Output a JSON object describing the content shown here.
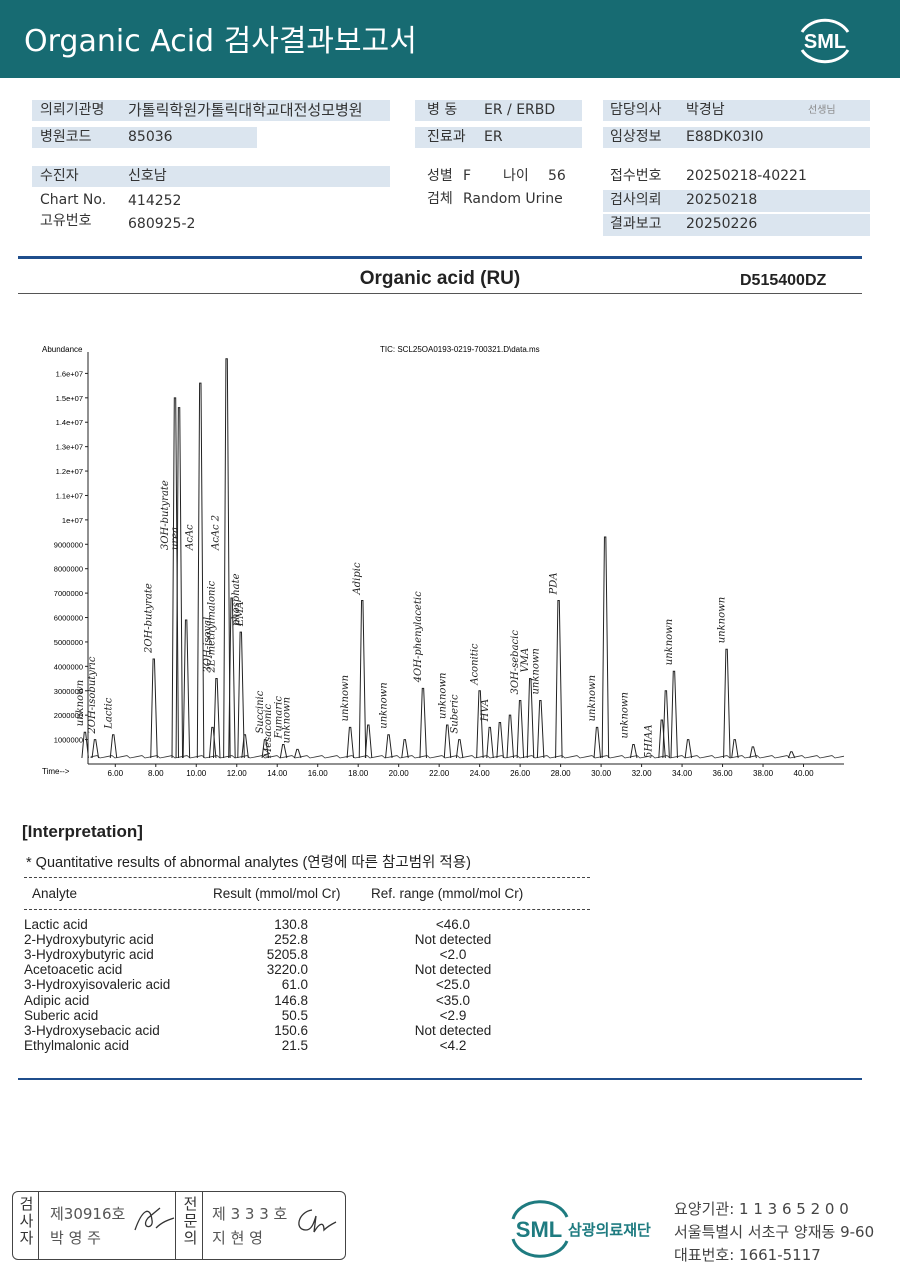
{
  "header": {
    "title": "Organic Acid 검사결과보고서",
    "logo": "SML"
  },
  "info": {
    "institution": {
      "label": "의뢰기관명",
      "value": "가톨릭학원가톨릭대학교대전성모병원"
    },
    "hospital_code": {
      "label": "병원코드",
      "value": "85036"
    },
    "ward": {
      "label": "병 동",
      "value": "ER / ERBD"
    },
    "department": {
      "label": "진료과",
      "value": "ER"
    },
    "doctor": {
      "label": "담당의사",
      "value": "박경남",
      "suffix": "선생님"
    },
    "clinical_info": {
      "label": "임상정보",
      "value": "E88DK03I0"
    },
    "patient": {
      "label": "수진자",
      "value": "신호남"
    },
    "chart_no": {
      "label": "Chart No.",
      "value": "414252"
    },
    "unique_no": {
      "label": "고유번호",
      "value": "680925-2"
    },
    "sex": {
      "label": "성별",
      "value": "F"
    },
    "age": {
      "label": "나이",
      "value": "56"
    },
    "specimen": {
      "label": "검체",
      "value": "Random Urine"
    },
    "receipt_no": {
      "label": "접수번호",
      "value": "20250218-40221"
    },
    "request_date": {
      "label": "검사의뢰",
      "value": "20250218"
    },
    "report_date": {
      "label": "결과보고",
      "value": "20250226"
    }
  },
  "test": {
    "title": "Organic acid (RU)",
    "code": "D515400DZ"
  },
  "chromatogram": {
    "type": "line",
    "title": "TIC: SCL25OA0193-0219-700321.D\\data.ms",
    "y_label": "Abundance",
    "x_label": "Time-->",
    "xlim": [
      4.8,
      42.0
    ],
    "ylim": [
      0,
      17000000
    ],
    "xticks": [
      {
        "value": 6,
        "label": "6.00"
      },
      {
        "value": 8,
        "label": "8.00"
      },
      {
        "value": 10,
        "label": "10.00"
      },
      {
        "value": 12,
        "label": "12.00"
      },
      {
        "value": 14,
        "label": "14.00"
      },
      {
        "value": 16,
        "label": "16.00"
      },
      {
        "value": 18,
        "label": "18.00"
      },
      {
        "value": 20,
        "label": "20.00"
      },
      {
        "value": 22,
        "label": "22.00"
      },
      {
        "value": 24,
        "label": "24.00"
      },
      {
        "value": 26,
        "label": "26.00"
      },
      {
        "value": 28,
        "label": "28.00"
      },
      {
        "value": 30,
        "label": "30.00"
      },
      {
        "value": 32,
        "label": "32.00"
      },
      {
        "value": 34,
        "label": "34.00"
      },
      {
        "value": 36,
        "label": "36.00"
      },
      {
        "value": 38,
        "label": "38.00"
      },
      {
        "value": 40,
        "label": "40.00"
      }
    ],
    "yticks": [
      1000000,
      2000000,
      3000000,
      4000000,
      5000000,
      6000000,
      7000000,
      8000000,
      9000000,
      {
        "value": 10000000,
        "label": "1e+07"
      },
      {
        "value": 11000000,
        "label": "1.1e+07"
      },
      {
        "value": 12000000,
        "label": "1.2e+07"
      },
      {
        "value": 13000000,
        "label": "1.3e+07"
      },
      {
        "value": 14000000,
        "label": "1.4e+07"
      },
      {
        "value": 15000000,
        "label": "1.5e+07"
      },
      {
        "value": 16000000,
        "label": "1.6e+07"
      }
    ],
    "x": [
      4.5,
      5.0,
      5.9,
      7.9,
      8.95,
      9.15,
      9.5,
      10.2,
      10.8,
      11.0,
      11.5,
      11.75,
      12.2,
      12.4,
      13.4,
      14.3,
      15.0,
      17.6,
      18.2,
      18.5,
      19.5,
      20.3,
      21.2,
      22.4,
      23.0,
      24.0,
      24.5,
      25.0,
      25.5,
      26.0,
      26.5,
      27.0,
      27.9,
      29.8,
      30.2,
      31.6,
      33.0,
      33.2,
      33.6,
      34.3,
      36.2,
      36.6,
      37.5,
      39.4
    ],
    "values": [
      1300000,
      1000000,
      1200000,
      4300000,
      15000000,
      14600000,
      5900000,
      15600000,
      1500000,
      3500000,
      16600000,
      6800000,
      5400000,
      1200000,
      1000000,
      800000,
      600000,
      1500000,
      6700000,
      1600000,
      1200000,
      1000000,
      3100000,
      1600000,
      1000000,
      3000000,
      1500000,
      1700000,
      2000000,
      2600000,
      3500000,
      2600000,
      6700000,
      1500000,
      9300000,
      800000,
      1800000,
      3000000,
      3800000,
      1000000,
      4700000,
      1000000,
      700000,
      500000
    ],
    "annotations": [
      {
        "text": "unknown",
        "x": 4.5
      },
      {
        "text": "2OH-isobutyric",
        "x": 5.1
      },
      {
        "text": "Lactic",
        "x": 5.9
      },
      {
        "text": "2OH-butyrate",
        "x": 7.9
      },
      {
        "text": "3OH-butyrate",
        "x": 9.0
      },
      {
        "text": "urea",
        "x": 9.5
      },
      {
        "text": "AcAc",
        "x": 10.2
      },
      {
        "text": "3OH-isoval",
        "x": 10.8
      },
      {
        "text": "2E-methylmalonic",
        "x": 11.0
      },
      {
        "text": "AcAc 2",
        "x": 11.5
      },
      {
        "text": "phosphate",
        "x": 12.2
      },
      {
        "text": "EMA",
        "x": 12.4
      },
      {
        "text": "Succinic",
        "x": 13.4
      },
      {
        "text": "Mesaconic",
        "x": 13.8
      },
      {
        "text": "Fumaric",
        "x": 14.3
      },
      {
        "text": "unknown",
        "x": 14.7
      },
      {
        "text": "unknown",
        "x": 17.6
      },
      {
        "text": "Adipic",
        "x": 18.2
      },
      {
        "text": "unknown",
        "x": 19.5
      },
      {
        "text": "4OH-phenylacetic",
        "x": 21.2
      },
      {
        "text": "unknown",
        "x": 22.4
      },
      {
        "text": "Suberic",
        "x": 23.0
      },
      {
        "text": "Aconitic",
        "x": 24.0
      },
      {
        "text": "HVA",
        "x": 24.5
      },
      {
        "text": "3OH-sebacic",
        "x": 26.0
      },
      {
        "text": "VMA",
        "x": 26.5
      },
      {
        "text": "unknown",
        "x": 27.0
      },
      {
        "text": "PDA",
        "x": 27.9
      },
      {
        "text": "unknown",
        "x": 29.8
      },
      {
        "text": "unknown",
        "x": 31.4
      },
      {
        "text": "5HIAA",
        "x": 32.6
      },
      {
        "text": "unknown",
        "x": 33.6
      },
      {
        "text": "unknown",
        "x": 36.2
      }
    ]
  },
  "interpretation": {
    "title": "[Interpretation]",
    "note": "* Quantitative results of abnormal analytes (연령에 따른 참고범위 적용)",
    "columns": [
      "Analyte",
      "Result (mmol/mol Cr)",
      "Ref. range (mmol/mol Cr)"
    ],
    "rows": [
      [
        "Lactic acid",
        "130.8",
        "<46.0"
      ],
      [
        "2-Hydroxybutyric acid",
        "252.8",
        "Not detected"
      ],
      [
        "3-Hydroxybutyric acid",
        "5205.8",
        "<2.0"
      ],
      [
        "Acetoacetic acid",
        "3220.0",
        "Not detected"
      ],
      [
        "3-Hydroxyisovaleric acid",
        "61.0",
        "<25.0"
      ],
      [
        "Adipic acid",
        "146.8",
        "<35.0"
      ],
      [
        "Suberic acid",
        "50.5",
        "<2.9"
      ],
      [
        "3-Hydroxysebacic acid",
        "150.6",
        "Not detected"
      ],
      [
        "Ethylmalonic acid",
        "21.5",
        "<4.2"
      ]
    ]
  },
  "footer": {
    "signature": {
      "tester_label": "검사자",
      "tester_no": "제30916호",
      "tester_name": "박 영 주",
      "specialist_label": "전문의",
      "specialist_no": "제 3 3 3 호",
      "specialist_name": "지 현 영"
    },
    "org": {
      "logo": "SML",
      "name": "삼광의료재단",
      "code": "요양기관: 1 1 3 6 5 2 0 0",
      "address": "서울특별시 서초구 양재동 9-60",
      "phone": "대표번호: 1661-5117"
    }
  }
}
